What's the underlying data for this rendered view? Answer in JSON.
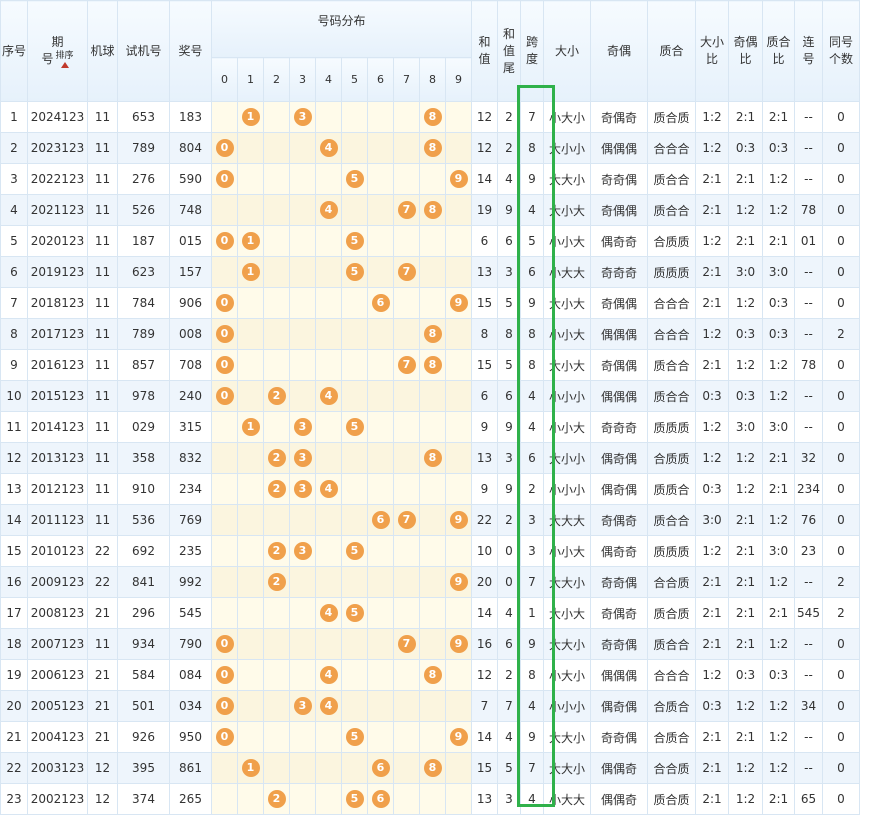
{
  "headers": {
    "seq": "序号",
    "period": "期\n号",
    "sort_label": "排序",
    "machine": "机球",
    "trial": "试机号",
    "prize": "奖号",
    "dist_group": "号码分布",
    "digits": [
      "0",
      "1",
      "2",
      "3",
      "4",
      "5",
      "6",
      "7",
      "8",
      "9"
    ],
    "sum": "和\n值",
    "sum_tail": "和\n值\n尾",
    "span": "跨\n度",
    "size": "大小",
    "parity": "奇偶",
    "prime": "质合",
    "size_ratio": "大小\n比",
    "parity_ratio": "奇偶\n比",
    "prime_ratio": "质合\n比",
    "consecutive": "连\n号",
    "same_count": "同号\n个数"
  },
  "rows": [
    {
      "seq": "1",
      "period": "2024123",
      "machine": "11",
      "trial": "653",
      "prize": "183",
      "balls": [
        1,
        3,
        8
      ],
      "sum": "12",
      "tail": "2",
      "span": "7",
      "size": "小大小",
      "parity": "奇偶奇",
      "prime": "质合质",
      "sr": "1:2",
      "pr": "2:1",
      "qr": "2:1",
      "lian": "--",
      "same": "0"
    },
    {
      "seq": "2",
      "period": "2023123",
      "machine": "11",
      "trial": "789",
      "prize": "804",
      "balls": [
        0,
        4,
        8
      ],
      "sum": "12",
      "tail": "2",
      "span": "8",
      "size": "大小小",
      "parity": "偶偶偶",
      "prime": "合合合",
      "sr": "1:2",
      "pr": "0:3",
      "qr": "0:3",
      "lian": "--",
      "same": "0"
    },
    {
      "seq": "3",
      "period": "2022123",
      "machine": "11",
      "trial": "276",
      "prize": "590",
      "balls": [
        0,
        5,
        9
      ],
      "sum": "14",
      "tail": "4",
      "span": "9",
      "size": "大大小",
      "parity": "奇奇偶",
      "prime": "质合合",
      "sr": "2:1",
      "pr": "2:1",
      "qr": "1:2",
      "lian": "--",
      "same": "0"
    },
    {
      "seq": "4",
      "period": "2021123",
      "machine": "11",
      "trial": "526",
      "prize": "748",
      "balls": [
        4,
        7,
        8
      ],
      "sum": "19",
      "tail": "9",
      "span": "4",
      "size": "大小大",
      "parity": "奇偶偶",
      "prime": "质合合",
      "sr": "2:1",
      "pr": "1:2",
      "qr": "1:2",
      "lian": "78",
      "same": "0"
    },
    {
      "seq": "5",
      "period": "2020123",
      "machine": "11",
      "trial": "187",
      "prize": "015",
      "balls": [
        0,
        1,
        5
      ],
      "sum": "6",
      "tail": "6",
      "span": "5",
      "size": "小小大",
      "parity": "偶奇奇",
      "prime": "合质质",
      "sr": "1:2",
      "pr": "2:1",
      "qr": "2:1",
      "lian": "01",
      "same": "0"
    },
    {
      "seq": "6",
      "period": "2019123",
      "machine": "11",
      "trial": "623",
      "prize": "157",
      "balls": [
        1,
        5,
        7
      ],
      "sum": "13",
      "tail": "3",
      "span": "6",
      "size": "小大大",
      "parity": "奇奇奇",
      "prime": "质质质",
      "sr": "2:1",
      "pr": "3:0",
      "qr": "3:0",
      "lian": "--",
      "same": "0"
    },
    {
      "seq": "7",
      "period": "2018123",
      "machine": "11",
      "trial": "784",
      "prize": "906",
      "balls": [
        0,
        6,
        9
      ],
      "sum": "15",
      "tail": "5",
      "span": "9",
      "size": "大小大",
      "parity": "奇偶偶",
      "prime": "合合合",
      "sr": "2:1",
      "pr": "1:2",
      "qr": "0:3",
      "lian": "--",
      "same": "0"
    },
    {
      "seq": "8",
      "period": "2017123",
      "machine": "11",
      "trial": "789",
      "prize": "008",
      "balls": [
        0,
        8
      ],
      "sum": "8",
      "tail": "8",
      "span": "8",
      "size": "小小大",
      "parity": "偶偶偶",
      "prime": "合合合",
      "sr": "1:2",
      "pr": "0:3",
      "qr": "0:3",
      "lian": "--",
      "same": "2"
    },
    {
      "seq": "9",
      "period": "2016123",
      "machine": "11",
      "trial": "857",
      "prize": "708",
      "balls": [
        0,
        7,
        8
      ],
      "sum": "15",
      "tail": "5",
      "span": "8",
      "size": "大小大",
      "parity": "奇偶偶",
      "prime": "质合合",
      "sr": "2:1",
      "pr": "1:2",
      "qr": "1:2",
      "lian": "78",
      "same": "0"
    },
    {
      "seq": "10",
      "period": "2015123",
      "machine": "11",
      "trial": "978",
      "prize": "240",
      "balls": [
        0,
        2,
        4
      ],
      "sum": "6",
      "tail": "6",
      "span": "4",
      "size": "小小小",
      "parity": "偶偶偶",
      "prime": "质合合",
      "sr": "0:3",
      "pr": "0:3",
      "qr": "1:2",
      "lian": "--",
      "same": "0"
    },
    {
      "seq": "11",
      "period": "2014123",
      "machine": "11",
      "trial": "029",
      "prize": "315",
      "balls": [
        1,
        3,
        5
      ],
      "sum": "9",
      "tail": "9",
      "span": "4",
      "size": "小小大",
      "parity": "奇奇奇",
      "prime": "质质质",
      "sr": "1:2",
      "pr": "3:0",
      "qr": "3:0",
      "lian": "--",
      "same": "0"
    },
    {
      "seq": "12",
      "period": "2013123",
      "machine": "11",
      "trial": "358",
      "prize": "832",
      "balls": [
        2,
        3,
        8
      ],
      "sum": "13",
      "tail": "3",
      "span": "6",
      "size": "大小小",
      "parity": "偶奇偶",
      "prime": "合质质",
      "sr": "1:2",
      "pr": "1:2",
      "qr": "2:1",
      "lian": "32",
      "same": "0"
    },
    {
      "seq": "13",
      "period": "2012123",
      "machine": "11",
      "trial": "910",
      "prize": "234",
      "balls": [
        2,
        3,
        4
      ],
      "sum": "9",
      "tail": "9",
      "span": "2",
      "size": "小小小",
      "parity": "偶奇偶",
      "prime": "质质合",
      "sr": "0:3",
      "pr": "1:2",
      "qr": "2:1",
      "lian": "234",
      "same": "0"
    },
    {
      "seq": "14",
      "period": "2011123",
      "machine": "11",
      "trial": "536",
      "prize": "769",
      "balls": [
        6,
        7,
        9
      ],
      "sum": "22",
      "tail": "2",
      "span": "3",
      "size": "大大大",
      "parity": "奇偶奇",
      "prime": "质合合",
      "sr": "3:0",
      "pr": "2:1",
      "qr": "1:2",
      "lian": "76",
      "same": "0"
    },
    {
      "seq": "15",
      "period": "2010123",
      "machine": "22",
      "trial": "692",
      "prize": "235",
      "balls": [
        2,
        3,
        5
      ],
      "sum": "10",
      "tail": "0",
      "span": "3",
      "size": "小小大",
      "parity": "偶奇奇",
      "prime": "质质质",
      "sr": "1:2",
      "pr": "2:1",
      "qr": "3:0",
      "lian": "23",
      "same": "0"
    },
    {
      "seq": "16",
      "period": "2009123",
      "machine": "22",
      "trial": "841",
      "prize": "992",
      "balls": [
        2,
        9
      ],
      "sum": "20",
      "tail": "0",
      "span": "7",
      "size": "大大小",
      "parity": "奇奇偶",
      "prime": "合合质",
      "sr": "2:1",
      "pr": "2:1",
      "qr": "1:2",
      "lian": "--",
      "same": "2"
    },
    {
      "seq": "17",
      "period": "2008123",
      "machine": "21",
      "trial": "296",
      "prize": "545",
      "balls": [
        4,
        5
      ],
      "sum": "14",
      "tail": "4",
      "span": "1",
      "size": "大小大",
      "parity": "奇偶奇",
      "prime": "质合质",
      "sr": "2:1",
      "pr": "2:1",
      "qr": "2:1",
      "lian": "545",
      "same": "2"
    },
    {
      "seq": "18",
      "period": "2007123",
      "machine": "11",
      "trial": "934",
      "prize": "790",
      "balls": [
        0,
        7,
        9
      ],
      "sum": "16",
      "tail": "6",
      "span": "9",
      "size": "大大小",
      "parity": "奇奇偶",
      "prime": "质合合",
      "sr": "2:1",
      "pr": "2:1",
      "qr": "1:2",
      "lian": "--",
      "same": "0"
    },
    {
      "seq": "19",
      "period": "2006123",
      "machine": "21",
      "trial": "584",
      "prize": "084",
      "balls": [
        0,
        4,
        8
      ],
      "sum": "12",
      "tail": "2",
      "span": "8",
      "size": "小大小",
      "parity": "偶偶偶",
      "prime": "合合合",
      "sr": "1:2",
      "pr": "0:3",
      "qr": "0:3",
      "lian": "--",
      "same": "0"
    },
    {
      "seq": "20",
      "period": "2005123",
      "machine": "21",
      "trial": "501",
      "prize": "034",
      "balls": [
        0,
        3,
        4
      ],
      "sum": "7",
      "tail": "7",
      "span": "4",
      "size": "小小小",
      "parity": "偶奇偶",
      "prime": "合质合",
      "sr": "0:3",
      "pr": "1:2",
      "qr": "1:2",
      "lian": "34",
      "same": "0"
    },
    {
      "seq": "21",
      "period": "2004123",
      "machine": "21",
      "trial": "926",
      "prize": "950",
      "balls": [
        0,
        5,
        9
      ],
      "sum": "14",
      "tail": "4",
      "span": "9",
      "size": "大大小",
      "parity": "奇奇偶",
      "prime": "合质合",
      "sr": "2:1",
      "pr": "2:1",
      "qr": "1:2",
      "lian": "--",
      "same": "0"
    },
    {
      "seq": "22",
      "period": "2003123",
      "machine": "12",
      "trial": "395",
      "prize": "861",
      "balls": [
        1,
        6,
        8
      ],
      "sum": "15",
      "tail": "5",
      "span": "7",
      "size": "大大小",
      "parity": "偶偶奇",
      "prime": "合合质",
      "sr": "2:1",
      "pr": "1:2",
      "qr": "1:2",
      "lian": "--",
      "same": "0"
    },
    {
      "seq": "23",
      "period": "2002123",
      "machine": "12",
      "trial": "374",
      "prize": "265",
      "balls": [
        2,
        5,
        6
      ],
      "sum": "13",
      "tail": "3",
      "span": "4",
      "size": "小大大",
      "parity": "偶偶奇",
      "prime": "质合质",
      "sr": "2:1",
      "pr": "1:2",
      "qr": "2:1",
      "lian": "65",
      "same": "0"
    }
  ],
  "colors": {
    "ball": "#f0a04b",
    "highlight_box": "#2fb14a",
    "sort_arrow": "#c0392b"
  }
}
